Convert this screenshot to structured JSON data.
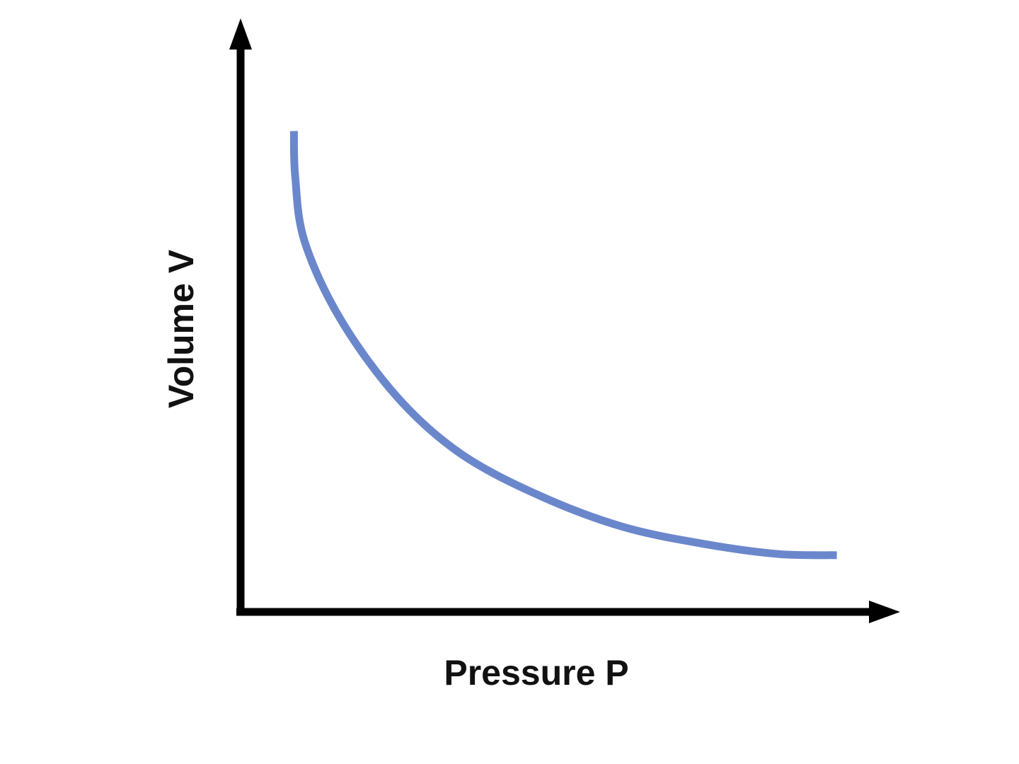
{
  "chart_data": {
    "type": "line",
    "xlabel": "Pressure P",
    "ylabel": "Volume V",
    "x": [
      0.81,
      0.83,
      0.97,
      1.51,
      2.37,
      3.33,
      4.52,
      5.81,
      7.1,
      8.17,
      9.06
    ],
    "values": [
      8.14,
      7.37,
      6.28,
      4.97,
      3.65,
      2.69,
      1.98,
      1.44,
      1.14,
      0.98,
      0.96
    ],
    "color": "#6b87cc",
    "xlim": [
      0,
      10
    ],
    "ylim": [
      0,
      10
    ],
    "grid": false
  }
}
